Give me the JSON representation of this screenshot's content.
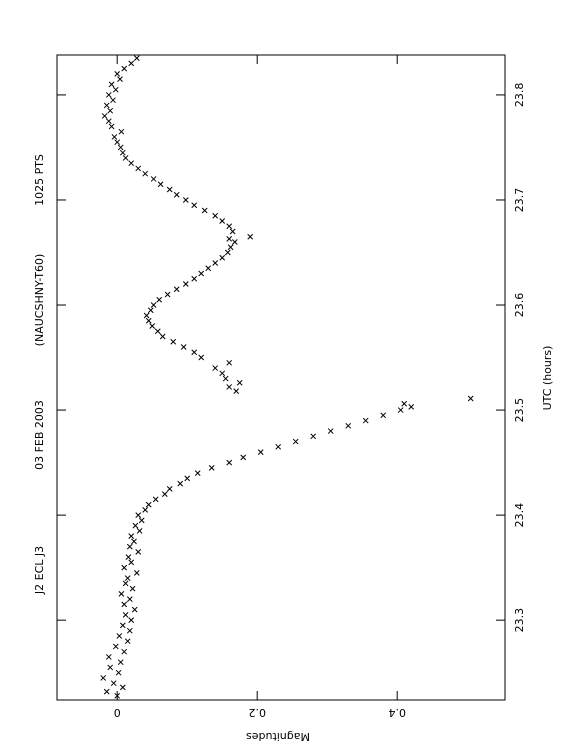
{
  "chart_data": {
    "type": "scatter",
    "title": "J2 ECL J3",
    "date": "03 FEB 2003",
    "observatory": "(NAUCSHNY-T60)",
    "points_label": "1025 PTS",
    "xlabel": "UTC (hours)",
    "ylabel": "Magnitudes",
    "xlim": [
      23.224,
      23.838
    ],
    "xticks": [
      23.3,
      23.4,
      23.5,
      23.6,
      23.7,
      23.8
    ],
    "ylim": [
      -0.086,
      0.554
    ],
    "yticks": [
      0,
      0.2,
      0.4
    ],
    "color": "#000000",
    "x": [
      23.228,
      23.232,
      23.236,
      23.24,
      23.245,
      23.25,
      23.255,
      23.26,
      23.265,
      23.27,
      23.275,
      23.28,
      23.285,
      23.29,
      23.295,
      23.3,
      23.305,
      23.31,
      23.315,
      23.32,
      23.325,
      23.33,
      23.335,
      23.34,
      23.345,
      23.35,
      23.355,
      23.36,
      23.365,
      23.37,
      23.375,
      23.38,
      23.385,
      23.39,
      23.395,
      23.4,
      23.405,
      23.41,
      23.415,
      23.42,
      23.425,
      23.43,
      23.435,
      23.44,
      23.445,
      23.45,
      23.455,
      23.46,
      23.465,
      23.47,
      23.475,
      23.48,
      23.485,
      23.49,
      23.495,
      23.5,
      23.503,
      23.506,
      23.511,
      23.518,
      23.522,
      23.526,
      23.53,
      23.535,
      23.54,
      23.545,
      23.55,
      23.555,
      23.56,
      23.565,
      23.57,
      23.575,
      23.58,
      23.585,
      23.59,
      23.595,
      23.6,
      23.605,
      23.61,
      23.615,
      23.62,
      23.625,
      23.63,
      23.635,
      23.64,
      23.645,
      23.65,
      23.655,
      23.66,
      23.663,
      23.665,
      23.67,
      23.675,
      23.68,
      23.685,
      23.69,
      23.695,
      23.7,
      23.705,
      23.71,
      23.715,
      23.72,
      23.725,
      23.73,
      23.735,
      23.74,
      23.745,
      23.75,
      23.755,
      23.76,
      23.765,
      23.77,
      23.775,
      23.78,
      23.785,
      23.79,
      23.795,
      23.8,
      23.805,
      23.81,
      23.815,
      23.82,
      23.825,
      23.83,
      23.835
    ],
    "values": [
      0,
      -0.015,
      0.008,
      -0.005,
      -0.02,
      0.002,
      -0.01,
      0.005,
      -0.012,
      0.01,
      -0.002,
      0.015,
      0.003,
      0.018,
      0.008,
      0.02,
      0.012,
      0.025,
      0.01,
      0.018,
      0.006,
      0.022,
      0.012,
      0.015,
      0.028,
      0.01,
      0.02,
      0.016,
      0.03,
      0.018,
      0.024,
      0.02,
      0.032,
      0.026,
      0.035,
      0.03,
      0.04,
      0.045,
      0.055,
      0.068,
      0.075,
      0.09,
      0.1,
      0.115,
      0.135,
      0.16,
      0.18,
      0.205,
      0.23,
      0.255,
      0.28,
      0.305,
      0.33,
      0.355,
      0.38,
      0.405,
      0.42,
      0.41,
      0.505,
      0.17,
      0.16,
      0.175,
      0.155,
      0.15,
      0.14,
      0.16,
      0.12,
      0.11,
      0.095,
      0.08,
      0.065,
      0.058,
      0.05,
      0.045,
      0.042,
      0.048,
      0.052,
      0.06,
      0.072,
      0.085,
      0.098,
      0.11,
      0.12,
      0.13,
      0.14,
      0.15,
      0.158,
      0.162,
      0.168,
      0.16,
      0.19,
      0.165,
      0.16,
      0.15,
      0.14,
      0.125,
      0.11,
      0.098,
      0.085,
      0.075,
      0.062,
      0.052,
      0.04,
      0.03,
      0.02,
      0.012,
      0.008,
      0.005,
      0,
      -0.004,
      0.006,
      -0.008,
      -0.012,
      -0.018,
      -0.01,
      -0.015,
      -0.006,
      -0.012,
      -0.002,
      -0.008,
      0.004,
      0,
      0.01,
      0.02,
      0.028
    ]
  }
}
